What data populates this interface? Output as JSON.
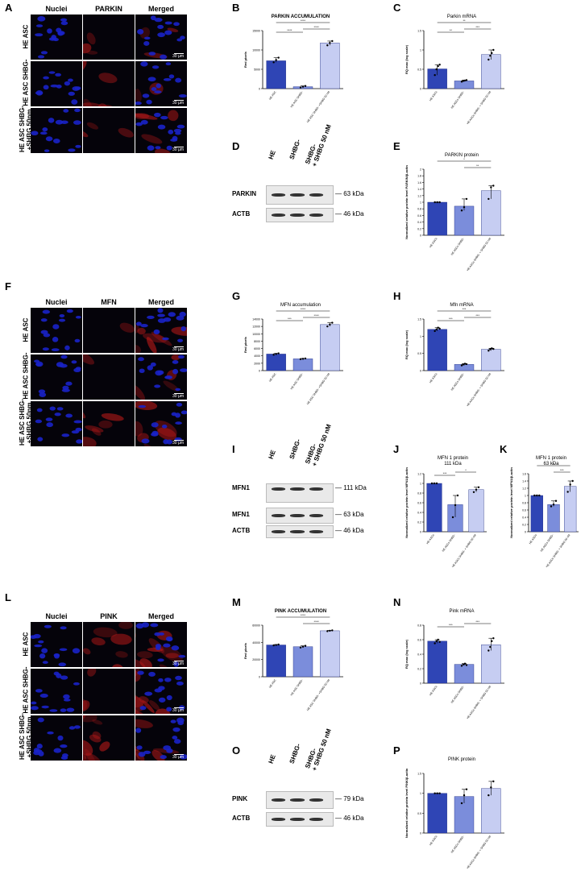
{
  "panels": {
    "A": "A",
    "B": "B",
    "C": "C",
    "D": "D",
    "E": "E",
    "F": "F",
    "G": "G",
    "H": "H",
    "I": "I",
    "J": "J",
    "K": "K",
    "L": "L",
    "M": "M",
    "N": "N",
    "O": "O",
    "P": "P"
  },
  "micro": {
    "col_nuclei": "Nuclei",
    "col_merged": "Merged",
    "col_parkin": "PARKIN",
    "col_mfn": "MFN",
    "col_pink": "PINK",
    "row1": "HE ASC",
    "row2": "HE ASC SHBG-",
    "row3a": "HE ASC SHBG-",
    "row3b": "+SHBG 50nm",
    "scale": "30 µm",
    "nuclei_color": "#1a22c8",
    "stain_color": "#b01818"
  },
  "blots": {
    "lane1": "HE",
    "lane2": "SHBG-",
    "lane3a": "SHBG-",
    "lane3b": "+ SHBG 50 nM",
    "parkin": "PARKIN",
    "parkin_kda": "63 kDa",
    "actb": "ACTB",
    "actb_kda": "46 kDa",
    "mfn1": "MFN1",
    "mfn1_kda_hi": "111 kDa",
    "mfn1_kda_lo": "63 kDa",
    "pink": "PINK",
    "pink_kda": "79 kDa"
  },
  "chart_data": [
    {
      "panel": "B",
      "type": "bar",
      "title": "PARKIN ACCUMULATION",
      "ylabel": "Red pixels",
      "categories": [
        "HE ASC",
        "HE ASC SHBG-",
        "HE ASC SHBG- +SHBG 50 nM"
      ],
      "values": [
        7200,
        500,
        11800
      ],
      "ylim": [
        0,
        15000
      ],
      "yticks": [
        0,
        5000,
        10000,
        15000
      ],
      "points": [
        [
          6800,
          7400,
          8000
        ],
        [
          300,
          500,
          700
        ],
        [
          11200,
          11800,
          12300
        ]
      ],
      "sig": [
        {
          "a": 0,
          "b": 1,
          "label": "****"
        },
        {
          "a": 1,
          "b": 2,
          "label": "****"
        },
        {
          "a": 0,
          "b": 2,
          "label": "****"
        }
      ]
    },
    {
      "panel": "C",
      "type": "bar",
      "title": "Parkin mRNA",
      "ylabel": "RQ max (log scale)",
      "categories": [
        "HE ASCs",
        "HE ASCs SHBG-",
        "HE ASCs SHBG- + SHBG 50 nM"
      ],
      "values": [
        0.51,
        0.2,
        0.88
      ],
      "ylim": [
        0,
        1.5
      ],
      "yticks": [
        0,
        0.5,
        1.0,
        1.5
      ],
      "points": [
        [
          0.35,
          0.5,
          0.58,
          0.62
        ],
        [
          0.18,
          0.2,
          0.21,
          0.22
        ],
        [
          0.75,
          0.85,
          0.92,
          1.0
        ]
      ],
      "sig": [
        {
          "a": 0,
          "b": 1,
          "label": "**"
        },
        {
          "a": 1,
          "b": 2,
          "label": "***"
        },
        {
          "a": 0,
          "b": 2,
          "label": "**"
        }
      ]
    },
    {
      "panel": "E",
      "type": "bar",
      "title": "PARKIN protein",
      "ylabel": "Normalized relative protein level PARKIN/β-actin",
      "categories": [
        "HE ASCs",
        "HE ASCs SHBG-",
        "HE ASCs SHBG- + SHBG 50 nM"
      ],
      "values": [
        1.0,
        0.88,
        1.35
      ],
      "ylim": [
        0,
        2.0
      ],
      "yticks": [
        0,
        0.2,
        0.4,
        0.6,
        0.8,
        1.0,
        1.2,
        1.4,
        1.6,
        1.8,
        2.0
      ],
      "points": [
        [
          1.0,
          1.0,
          1.0
        ],
        [
          0.75,
          0.85,
          1.1
        ],
        [
          1.1,
          1.45,
          1.5
        ]
      ],
      "sig": [
        {
          "a": 0,
          "b": 2,
          "label": "*"
        },
        {
          "a": 1,
          "b": 2,
          "label": "**"
        }
      ]
    },
    {
      "panel": "G",
      "type": "bar",
      "title": "MFN accumulation",
      "ylabel": "Red pixels",
      "categories": [
        "HE ASC",
        "HE ASC SHBG-",
        "HE ASC SHBG- +SHBG 50 nM"
      ],
      "values": [
        4500,
        3200,
        12500
      ],
      "ylim": [
        0,
        14000
      ],
      "yticks": [
        0,
        2000,
        4000,
        6000,
        8000,
        10000,
        12000,
        14000
      ],
      "points": [
        [
          4300,
          4500,
          4700
        ],
        [
          3100,
          3200,
          3300
        ],
        [
          12000,
          12500,
          13000
        ]
      ],
      "sig": [
        {
          "a": 0,
          "b": 1,
          "label": "***"
        },
        {
          "a": 1,
          "b": 2,
          "label": "****"
        },
        {
          "a": 0,
          "b": 2,
          "label": "****"
        }
      ]
    },
    {
      "panel": "H",
      "type": "bar",
      "title": "Mfn mRNA",
      "ylabel": "RQ max (log scale)",
      "categories": [
        "HE ASCs",
        "HE ASCs SHBG-",
        "HE ASCs SHBG- + SHBG 50 nM"
      ],
      "values": [
        1.2,
        0.18,
        0.62
      ],
      "ylim": [
        0,
        1.5
      ],
      "yticks": [
        0,
        0.5,
        1.0,
        1.5
      ],
      "points": [
        [
          1.15,
          1.2,
          1.25,
          1.22
        ],
        [
          0.15,
          0.18,
          0.2,
          0.19
        ],
        [
          0.58,
          0.62,
          0.65,
          0.63
        ]
      ],
      "sig": [
        {
          "a": 0,
          "b": 1,
          "label": "***"
        },
        {
          "a": 1,
          "b": 2,
          "label": "***"
        },
        {
          "a": 0,
          "b": 2,
          "label": "***"
        }
      ]
    },
    {
      "panel": "J",
      "type": "bar",
      "title": "MFN 1 protein",
      "subtitle": "111 kDa",
      "ylabel": "Normalized relative protein level MFN1/β-actin",
      "categories": [
        "HE ASCs",
        "HE ASCs SHBG-",
        "HE ASCs SHBG- + SHBG 50 nM"
      ],
      "values": [
        1.0,
        0.56,
        0.87
      ],
      "ylim": [
        0,
        1.2
      ],
      "yticks": [
        0,
        0.2,
        0.4,
        0.6,
        0.8,
        1.0,
        1.2
      ],
      "points": [
        [
          1.0,
          1.0,
          1.0
        ],
        [
          0.3,
          0.55,
          0.75
        ],
        [
          0.82,
          0.87,
          0.92
        ]
      ],
      "sig": [
        {
          "a": 0,
          "b": 1,
          "label": "***"
        },
        {
          "a": 1,
          "b": 2,
          "label": "*"
        }
      ]
    },
    {
      "panel": "K",
      "type": "bar",
      "title": "MFN 1 protein",
      "subtitle": "63 kDa",
      "ylabel": "Normalized relative protein level MFN1/β-actin",
      "categories": [
        "HE ASCs",
        "HE ASCs SHBG-",
        "HE ASCs SHBG- + SHBG 50 nM"
      ],
      "values": [
        1.0,
        0.75,
        1.25
      ],
      "ylim": [
        0,
        1.6
      ],
      "yticks": [
        0,
        0.2,
        0.4,
        0.6,
        0.8,
        1.0,
        1.2,
        1.4,
        1.6
      ],
      "points": [
        [
          1.0,
          1.0,
          1.0
        ],
        [
          0.7,
          0.75,
          0.85
        ],
        [
          1.1,
          1.3,
          1.4
        ]
      ],
      "sig": [
        {
          "a": 0,
          "b": 2,
          "label": "**"
        },
        {
          "a": 1,
          "b": 2,
          "label": "***"
        }
      ]
    },
    {
      "panel": "M",
      "type": "bar",
      "title": "PINK ACCUMULATION",
      "ylabel": "Red pixels",
      "categories": [
        "HE ASC",
        "HE ASC SHBG-",
        "HE ASC SHBG- +SHBG 50 nM"
      ],
      "values": [
        37000,
        35000,
        53500
      ],
      "ylim": [
        0,
        60000
      ],
      "yticks": [
        0,
        20000,
        40000,
        60000
      ],
      "points": [
        [
          36500,
          37000,
          37500
        ],
        [
          34000,
          35000,
          36000
        ],
        [
          53000,
          53500,
          54000
        ]
      ],
      "sig": [
        {
          "a": 0,
          "b": 2,
          "label": "****"
        },
        {
          "a": 1,
          "b": 2,
          "label": "****"
        }
      ]
    },
    {
      "panel": "N",
      "type": "bar",
      "title": "Pink mRNA",
      "ylabel": "RQ max (log scale)",
      "categories": [
        "HE ASCs",
        "HE ASCs SHBG-",
        "HE ASCs SHBG- + SHBG 50 nM"
      ],
      "values": [
        0.58,
        0.26,
        0.53
      ],
      "ylim": [
        0,
        0.8
      ],
      "yticks": [
        0,
        0.2,
        0.4,
        0.6,
        0.8
      ],
      "points": [
        [
          0.55,
          0.58,
          0.6,
          0.57
        ],
        [
          0.24,
          0.26,
          0.27,
          0.25
        ],
        [
          0.45,
          0.5,
          0.58,
          0.62
        ]
      ],
      "sig": [
        {
          "a": 0,
          "b": 1,
          "label": "***"
        },
        {
          "a": 1,
          "b": 2,
          "label": "***"
        }
      ]
    },
    {
      "panel": "P",
      "type": "bar",
      "title": "PINK protein",
      "ylabel": "Normalized relative protein level PINK/β-actin",
      "categories": [
        "HE ASCs",
        "HE ASCs SHBG-",
        "HE ASCs SHBG- + SHBG 50 nM"
      ],
      "values": [
        1.0,
        0.92,
        1.12
      ],
      "ylim": [
        0,
        1.5
      ],
      "yticks": [
        0,
        0.5,
        1.0,
        1.5
      ],
      "points": [
        [
          1.0,
          1.0,
          1.0
        ],
        [
          0.75,
          0.95,
          1.1
        ],
        [
          0.95,
          1.15,
          1.3
        ]
      ],
      "sig": []
    }
  ],
  "bar_colors": [
    "#2f45b5",
    "#7b8ddb",
    "#c6cdf2"
  ]
}
